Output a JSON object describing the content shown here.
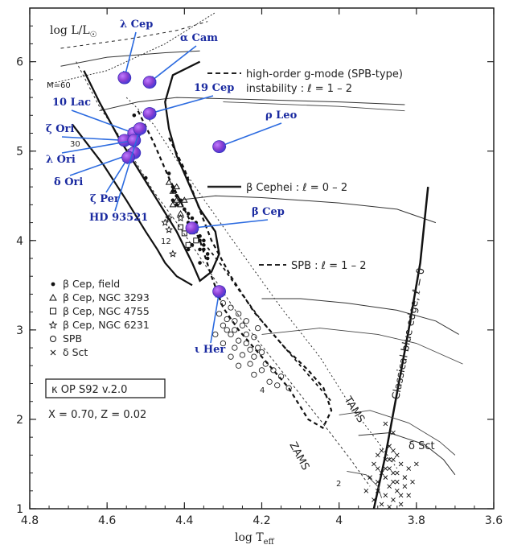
{
  "chart_data": {
    "type": "scatter",
    "title": "",
    "xlabel": "log T_eff",
    "ylabel": "log L/L_⊙",
    "xlim": [
      4.8,
      3.6
    ],
    "ylim": [
      1,
      6.6
    ],
    "x_ticks": [
      4.8,
      4.6,
      4.4,
      4.2,
      4,
      3.8,
      3.6
    ],
    "y_ticks": [
      1,
      2,
      3,
      4,
      5,
      6
    ],
    "grid": false,
    "legend_position": "left-middle",
    "legend": [
      {
        "symbol": "•",
        "label": "β Cep, field"
      },
      {
        "symbol": "△",
        "label": "β Cep, NGC 3293"
      },
      {
        "symbol": "□",
        "label": "β Cep, NGC 4755"
      },
      {
        "symbol": "☆",
        "label": "β Cep, NGC 6231"
      },
      {
        "symbol": "○",
        "label": "SPB"
      },
      {
        "symbol": "×",
        "label": "δ Sct"
      }
    ],
    "info_box": "κ OP S92 v.2.0",
    "composition": "X = 0.70,  Z = 0.02",
    "line_legend": [
      {
        "style": "dashed",
        "label": "high-order g-mode (SPB-type)",
        "label2": "instability : ℓ = 1 – 2"
      },
      {
        "style": "solid",
        "label": "β Cephei : ℓ = 0 – 2"
      },
      {
        "style": "dashed",
        "label": "SPB : ℓ = 1 – 2"
      }
    ],
    "curve_labels": {
      "zams": "ZAMS",
      "tams": "TAMS",
      "blue_edge": "Classical blue edge,  ℓ = 0",
      "delta_sct": "δ Sct"
    },
    "mass_labels": [
      "M=60",
      "30",
      "12",
      "4",
      "2"
    ],
    "highlighted_stars": [
      {
        "name": "λ Cep",
        "x": 4.555,
        "y": 5.82
      },
      {
        "name": "α Cam",
        "x": 4.49,
        "y": 5.77
      },
      {
        "name": "19 Cep",
        "x": 4.49,
        "y": 5.42
      },
      {
        "name": "10 Lac",
        "x": 4.53,
        "y": 5.2
      },
      {
        "name": "ζ Ori",
        "x": 4.555,
        "y": 5.12
      },
      {
        "name": "λ Ori",
        "x": 4.53,
        "y": 5.12
      },
      {
        "name": "δ Ori",
        "x": 4.53,
        "y": 4.98
      },
      {
        "name": "ζ Per",
        "x": 4.545,
        "y": 4.93
      },
      {
        "name": "ρ Leo",
        "x": 4.31,
        "y": 5.05
      },
      {
        "name": "β Cep",
        "x": 4.38,
        "y": 4.14
      },
      {
        "name": "ι Her",
        "x": 4.31,
        "y": 3.43
      },
      {
        "name": "HD 93521",
        "x": 4.515,
        "y": 5.25
      }
    ],
    "beta_cep_field": [
      [
        4.53,
        5.4
      ],
      [
        4.5,
        4.7
      ],
      [
        4.44,
        4.75
      ],
      [
        4.43,
        4.6
      ],
      [
        4.43,
        4.55
      ],
      [
        4.42,
        4.5
      ],
      [
        4.41,
        4.45
      ],
      [
        4.4,
        4.35
      ],
      [
        4.39,
        4.3
      ],
      [
        4.38,
        4.25
      ],
      [
        4.37,
        4.2
      ],
      [
        4.37,
        4.1
      ],
      [
        4.36,
        4.05
      ],
      [
        4.36,
        4.0
      ],
      [
        4.35,
        3.95
      ],
      [
        4.35,
        3.9
      ],
      [
        4.34,
        3.85
      ],
      [
        4.34,
        3.8
      ],
      [
        4.36,
        3.75
      ],
      [
        4.37,
        4.15
      ],
      [
        4.39,
        4.2
      ],
      [
        4.42,
        4.4
      ],
      [
        4.43,
        4.45
      ],
      [
        4.38,
        3.95
      ],
      [
        4.39,
        3.9
      ],
      [
        4.36,
        3.9
      ],
      [
        4.35,
        4.0
      ],
      [
        4.38,
        4.15
      ]
    ],
    "beta_cep_ngc3293": [
      [
        4.44,
        4.65
      ],
      [
        4.43,
        4.55
      ],
      [
        4.42,
        4.45
      ],
      [
        4.41,
        4.4
      ],
      [
        4.4,
        4.45
      ],
      [
        4.42,
        4.6
      ],
      [
        4.41,
        4.3
      ],
      [
        4.43,
        4.4
      ]
    ],
    "beta_cep_ngc4755": [
      [
        4.41,
        4.15
      ],
      [
        4.4,
        4.08
      ],
      [
        4.38,
        4.1
      ],
      [
        4.39,
        3.95
      ],
      [
        4.37,
        4.0
      ]
    ],
    "beta_cep_ngc6231": [
      [
        4.44,
        4.25
      ],
      [
        4.45,
        4.2
      ],
      [
        4.41,
        4.25
      ],
      [
        4.43,
        3.85
      ],
      [
        4.44,
        4.12
      ]
    ],
    "spb": [
      [
        4.3,
        3.3
      ],
      [
        4.28,
        3.25
      ],
      [
        4.26,
        3.18
      ],
      [
        4.29,
        3.12
      ],
      [
        4.27,
        3.1
      ],
      [
        4.25,
        3.05
      ],
      [
        4.3,
        3.05
      ],
      [
        4.27,
        3.0
      ],
      [
        4.28,
        2.95
      ],
      [
        4.24,
        2.95
      ],
      [
        4.3,
        2.85
      ],
      [
        4.26,
        2.88
      ],
      [
        4.22,
        2.92
      ],
      [
        4.27,
        2.8
      ],
      [
        4.24,
        2.85
      ],
      [
        4.23,
        2.78
      ],
      [
        4.21,
        2.8
      ],
      [
        4.28,
        2.7
      ],
      [
        4.25,
        2.72
      ],
      [
        4.22,
        2.7
      ],
      [
        4.2,
        2.75
      ],
      [
        4.19,
        2.62
      ],
      [
        4.23,
        2.62
      ],
      [
        4.26,
        2.6
      ],
      [
        4.17,
        2.55
      ],
      [
        4.2,
        2.55
      ],
      [
        4.15,
        2.48
      ],
      [
        4.18,
        2.42
      ],
      [
        4.22,
        2.5
      ],
      [
        4.16,
        2.38
      ],
      [
        4.13,
        2.35
      ],
      [
        4.31,
        3.18
      ],
      [
        4.29,
        3.0
      ],
      [
        4.32,
        2.95
      ],
      [
        4.21,
        3.02
      ],
      [
        4.24,
        3.1
      ]
    ],
    "delta_sct": [
      [
        3.88,
        1.95
      ],
      [
        3.86,
        1.85
      ],
      [
        3.9,
        1.6
      ],
      [
        3.88,
        1.55
      ],
      [
        3.86,
        1.55
      ],
      [
        3.84,
        1.5
      ],
      [
        3.87,
        1.45
      ],
      [
        3.9,
        1.45
      ],
      [
        3.85,
        1.4
      ],
      [
        3.88,
        1.35
      ],
      [
        3.86,
        1.3
      ],
      [
        3.83,
        1.35
      ],
      [
        3.9,
        1.3
      ],
      [
        3.87,
        1.25
      ],
      [
        3.85,
        1.2
      ],
      [
        3.88,
        1.15
      ],
      [
        3.86,
        1.1
      ],
      [
        3.84,
        1.15
      ],
      [
        3.89,
        1.05
      ],
      [
        3.87,
        1.02
      ],
      [
        3.92,
        1.35
      ],
      [
        3.91,
        1.5
      ],
      [
        3.82,
        1.45
      ],
      [
        3.8,
        1.5
      ],
      [
        3.85,
        1.6
      ],
      [
        3.87,
        1.7
      ],
      [
        3.89,
        1.65
      ],
      [
        3.83,
        1.25
      ],
      [
        3.81,
        1.3
      ],
      [
        3.93,
        1.2
      ],
      [
        3.86,
        1.4
      ],
      [
        3.88,
        1.45
      ],
      [
        3.9,
        1.2
      ],
      [
        3.84,
        1.05
      ],
      [
        3.85,
        1.3
      ],
      [
        3.87,
        1.55
      ],
      [
        3.89,
        1.4
      ],
      [
        3.91,
        1.1
      ],
      [
        3.82,
        1.15
      ],
      [
        3.86,
        1.65
      ]
    ],
    "colors": {
      "highlight_fill": "#8a3fd1",
      "highlight_inner": "#3b3bd9",
      "arrow": "#2c6be0",
      "label": "#1a2aa0"
    }
  }
}
